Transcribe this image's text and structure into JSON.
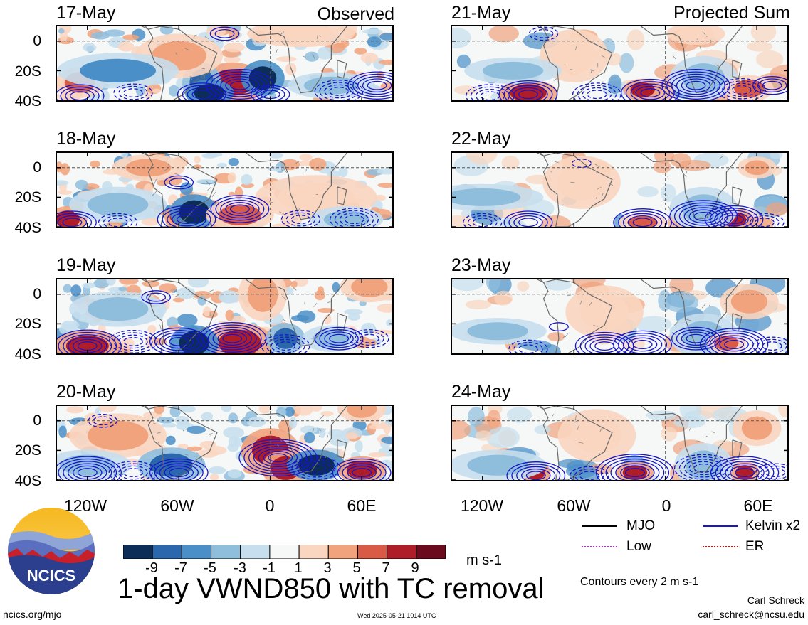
{
  "chart_data": {
    "type": "heatmap",
    "title": "1-day VWND850 with TC removal",
    "units": "m s-1",
    "colorbar_ticks": [
      -9,
      -7,
      -5,
      -3,
      -1,
      1,
      3,
      5,
      7,
      9
    ],
    "colorbar_colors": [
      "#0b2d57",
      "#2a67ad",
      "#4a8fc8",
      "#8fbedd",
      "#c6deed",
      "#f6f8f8",
      "#fad5bf",
      "#f1a37d",
      "#d95a45",
      "#ae1d28",
      "#6a0a1c"
    ],
    "columns": [
      {
        "heading": "Observed",
        "dates": [
          "17-May",
          "18-May",
          "19-May",
          "20-May"
        ]
      },
      {
        "heading": "Projected Sum",
        "dates": [
          "21-May",
          "22-May",
          "23-May",
          "24-May"
        ]
      }
    ],
    "y_ticks": [
      "0",
      "20S",
      "40S"
    ],
    "y_range": [
      -40,
      10
    ],
    "x_ticks": [
      "120W",
      "60W",
      "0",
      "60E"
    ],
    "x_range": [
      -140,
      80
    ],
    "legend": [
      {
        "label": "MJO",
        "color": "#000000"
      },
      {
        "label": "Kelvin x2",
        "color": "#1616c8"
      },
      {
        "label": "Low",
        "color": "#b030d0"
      },
      {
        "label": "ER",
        "color": "#c81414"
      }
    ],
    "contour_note": "Contours every 2 m s-1"
  },
  "logo_text": "NCICS",
  "footer": {
    "left": "ncics.org/mjo",
    "center": "Wed 2025-05-21 1014 UTC",
    "author": "Carl Schreck",
    "email": "carl_schreck@ncsu.edu"
  }
}
